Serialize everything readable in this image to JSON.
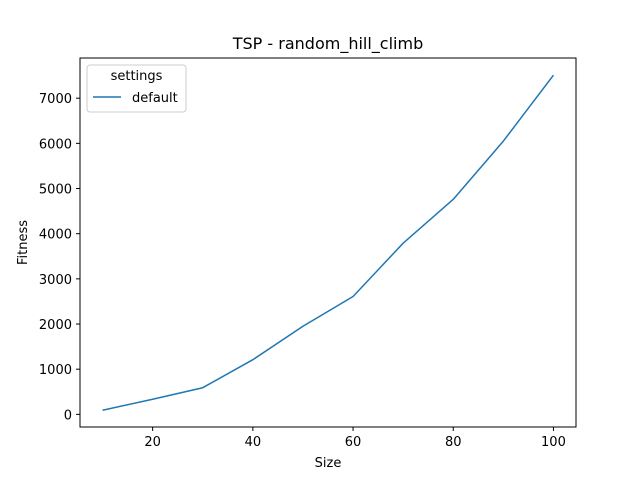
{
  "chart_data": {
    "type": "line",
    "title": "TSP - random_hill_climb",
    "xlabel": "Size",
    "ylabel": "Fitness",
    "xlim": [
      5.5,
      104.5
    ],
    "ylim": [
      -280,
      7890
    ],
    "x_ticks": [
      20,
      40,
      60,
      80,
      100
    ],
    "y_ticks": [
      0,
      1000,
      2000,
      3000,
      4000,
      5000,
      6000,
      7000
    ],
    "grid": false,
    "legend": {
      "title": "settings",
      "placement": "top-left"
    },
    "series": [
      {
        "name": "default",
        "color": "#1f77b4",
        "x": [
          10,
          20,
          30,
          40,
          50,
          60,
          70,
          80,
          90,
          100
        ],
        "y": [
          90,
          335,
          590,
          1210,
          1950,
          2610,
          3790,
          4760,
          6050,
          7510
        ]
      }
    ]
  }
}
